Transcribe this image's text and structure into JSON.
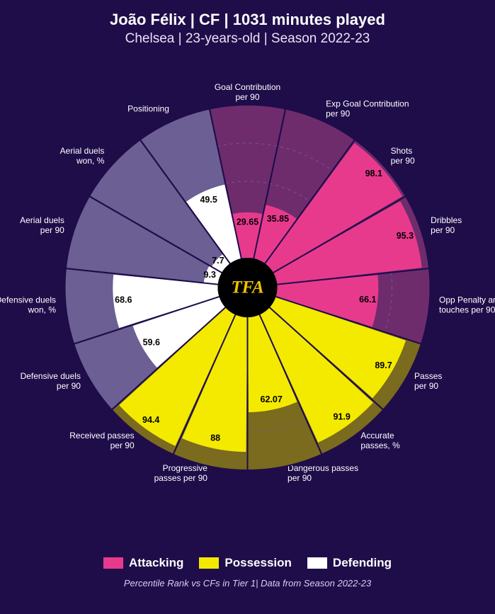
{
  "header": {
    "title": "João Félix | CF | 1031 minutes played",
    "subtitle": "Chelsea | 23-years-old | Season 2022-23"
  },
  "footnote": "Percentile Rank vs CFs in Tier 1| Data from Season 2022-23",
  "center_logo": "TFA",
  "chart": {
    "type": "polar-bar",
    "background": "#1f0d4a",
    "outer_radius": 258,
    "inner_radius": 42,
    "grid_radii_pct": [
      25,
      50,
      75,
      100
    ],
    "grid_color": "#6a5a9a",
    "grid_dash": "4 5",
    "categories": {
      "attacking": {
        "color_bg": "#6f2c6d",
        "color_fill": "#e83a8d"
      },
      "possession": {
        "color_bg": "#7a6b1f",
        "color_fill": "#f3ea00"
      },
      "defending": {
        "color_bg": "#6b5f94",
        "color_fill": "#ffffff"
      }
    },
    "value_label_text_colors": {
      "attacking": "#000000",
      "possession": "#000000",
      "defending": "#000000"
    },
    "metric_label_color": "#ffffff",
    "metric_label_fontsize": 12,
    "value_label_fontsize": 12.5,
    "metrics": [
      {
        "label_lines": [
          "Goal Contribution",
          "per 90"
        ],
        "value": 29.65,
        "category": "attacking"
      },
      {
        "label_lines": [
          "Exp Goal Contribution",
          "per 90"
        ],
        "value": 35.85,
        "category": "attacking"
      },
      {
        "label_lines": [
          "Shots",
          "per 90"
        ],
        "value": 98.1,
        "category": "attacking"
      },
      {
        "label_lines": [
          "Dribbles",
          "per 90"
        ],
        "value": 95.3,
        "category": "attacking"
      },
      {
        "label_lines": [
          "Opp Penalty area",
          "touches per 90"
        ],
        "value": 66.1,
        "category": "attacking"
      },
      {
        "label_lines": [
          "Passes",
          "per 90"
        ],
        "value": 89.7,
        "category": "possession"
      },
      {
        "label_lines": [
          "Accurate",
          "passes, %"
        ],
        "value": 91.9,
        "category": "possession"
      },
      {
        "label_lines": [
          "Dangerous passes",
          "per 90"
        ],
        "value": 62.07,
        "category": "possession"
      },
      {
        "label_lines": [
          "Progressive",
          "passes per 90"
        ],
        "value": 88.0,
        "category": "possession"
      },
      {
        "label_lines": [
          "Received passes",
          "per 90"
        ],
        "value": 94.4,
        "category": "possession"
      },
      {
        "label_lines": [
          "Defensive duels",
          "per 90"
        ],
        "value": 59.6,
        "category": "defending"
      },
      {
        "label_lines": [
          "Defensive duels",
          "won, %"
        ],
        "value": 68.6,
        "category": "defending"
      },
      {
        "label_lines": [
          "Aerial duels",
          "per 90"
        ],
        "value": 9.3,
        "category": "defending"
      },
      {
        "label_lines": [
          "Aerial duels",
          "won, %"
        ],
        "value": 7.7,
        "category": "defending"
      },
      {
        "label_lines": [
          "Positioning"
        ],
        "value": 49.5,
        "category": "defending"
      }
    ]
  },
  "legend": {
    "items": [
      {
        "label": "Attacking",
        "color": "#e83a8d"
      },
      {
        "label": "Possession",
        "color": "#f3ea00"
      },
      {
        "label": "Defending",
        "color": "#ffffff"
      }
    ]
  },
  "center_circle": {
    "fill": "#000000",
    "radius": 42
  }
}
